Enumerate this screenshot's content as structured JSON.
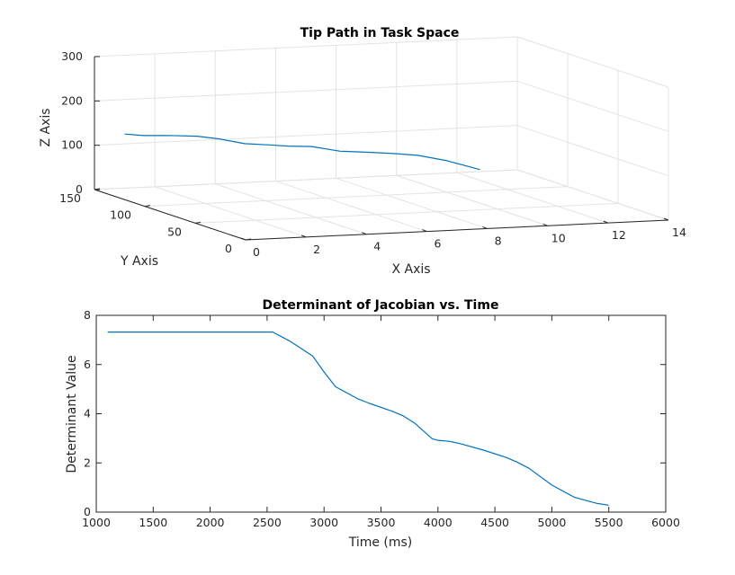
{
  "chart_data": [
    {
      "type": "line3d",
      "title": "Tip Path in Task Space",
      "xlabel": "X Axis",
      "ylabel": "Y Axis",
      "zlabel": "Z Axis",
      "xlim": [
        0,
        14
      ],
      "ylim": [
        0,
        150
      ],
      "zlim": [
        0,
        300
      ],
      "xticks": [
        0,
        2,
        4,
        6,
        8,
        10,
        12,
        14
      ],
      "yticks": [
        0,
        50,
        100,
        150
      ],
      "zticks": [
        0,
        100,
        200,
        300
      ],
      "grid": true,
      "color": "#0072BD",
      "series": [
        {
          "x": [
            1.0,
            1.5,
            2.2,
            3.0,
            3.6,
            4.3,
            5.0,
            5.5,
            6.2,
            7.0,
            7.8,
            8.5,
            9.2,
            10.0,
            11.0
          ],
          "y": [
            150,
            146,
            142,
            138,
            134,
            130,
            126,
            123,
            120,
            116,
            112,
            108,
            105,
            101,
            97
          ],
          "z": [
            122,
            120,
            121,
            120,
            115,
            105,
            103,
            101,
            100,
            90,
            88,
            86,
            82,
            71,
            50
          ]
        }
      ]
    },
    {
      "type": "line",
      "title": "Determinant of Jacobian vs. Time",
      "xlabel": "Time (ms)",
      "ylabel": "Determinant Value",
      "xlim": [
        1000,
        6000
      ],
      "ylim": [
        0,
        8
      ],
      "xticks": [
        1000,
        1500,
        2000,
        2500,
        3000,
        3500,
        4000,
        4500,
        5000,
        5500,
        6000
      ],
      "yticks": [
        0,
        2,
        4,
        6,
        8
      ],
      "grid": false,
      "color": "#0072BD",
      "series": [
        {
          "x": [
            1100,
            2550,
            2700,
            2900,
            3000,
            3100,
            3300,
            3400,
            3600,
            3700,
            3800,
            3950,
            4000,
            4100,
            4200,
            4400,
            4600,
            4700,
            4800,
            5000,
            5200,
            5400,
            5500
          ],
          "y": [
            7.32,
            7.32,
            6.95,
            6.35,
            5.7,
            5.1,
            4.6,
            4.42,
            4.1,
            3.9,
            3.6,
            2.98,
            2.92,
            2.88,
            2.78,
            2.52,
            2.22,
            2.02,
            1.78,
            1.1,
            0.6,
            0.35,
            0.28
          ]
        }
      ]
    }
  ]
}
